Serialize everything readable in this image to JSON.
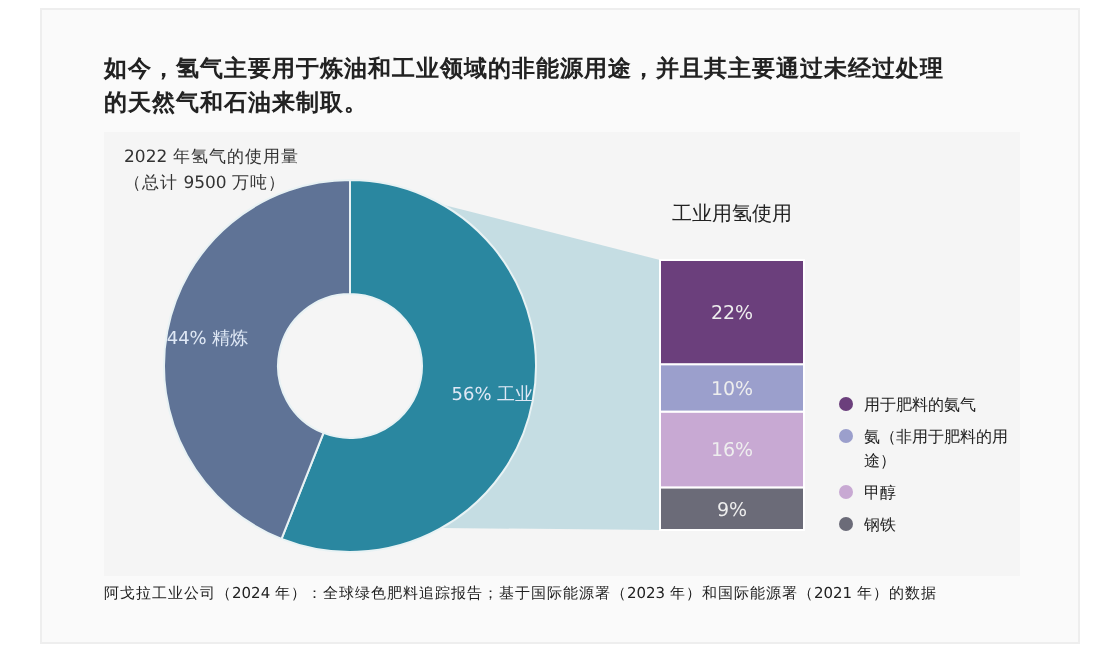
{
  "chart_data": [
    {
      "type": "donut",
      "title": "如今，氢气主要用于炼油和工业领域的非能源用途，并且其主要通过未经过处理的天然气和石油来制取。",
      "subtitle": "2022 年氢气的使用量（总计 9500 万吨）",
      "categories": [
        "工业",
        "精炼"
      ],
      "values": [
        56,
        44
      ],
      "colors": [
        "#2a87a0",
        "#5f7396"
      ],
      "value_labels": [
        "56%",
        "44%"
      ],
      "annotations": [
        "阿戈拉工业公司（2024 年）：全球绿色肥料追踪报告；基于国际能源署（2023 年）和国际能源署（2021 年）的数据"
      ]
    },
    {
      "type": "bar",
      "stacked": true,
      "title": "工业用氢使用",
      "categories": [
        null
      ],
      "legend": "right",
      "series": [
        {
          "name": "钢铁",
          "color": "#6b6b78",
          "values": [
            9
          ],
          "value_labels": [
            "9%"
          ]
        },
        {
          "name": "甲醇",
          "color": "#c8a9d3",
          "values": [
            16
          ],
          "value_labels": [
            "16%"
          ]
        },
        {
          "name": "氨（非用于肥料的用途）",
          "color": "#9b9fcc",
          "values": [
            10
          ],
          "value_labels": [
            "10%"
          ]
        },
        {
          "name": "用于肥料的氨气",
          "color": "#6b3f7c",
          "values": [
            22
          ],
          "value_labels": [
            "22%"
          ]
        }
      ]
    }
  ]
}
